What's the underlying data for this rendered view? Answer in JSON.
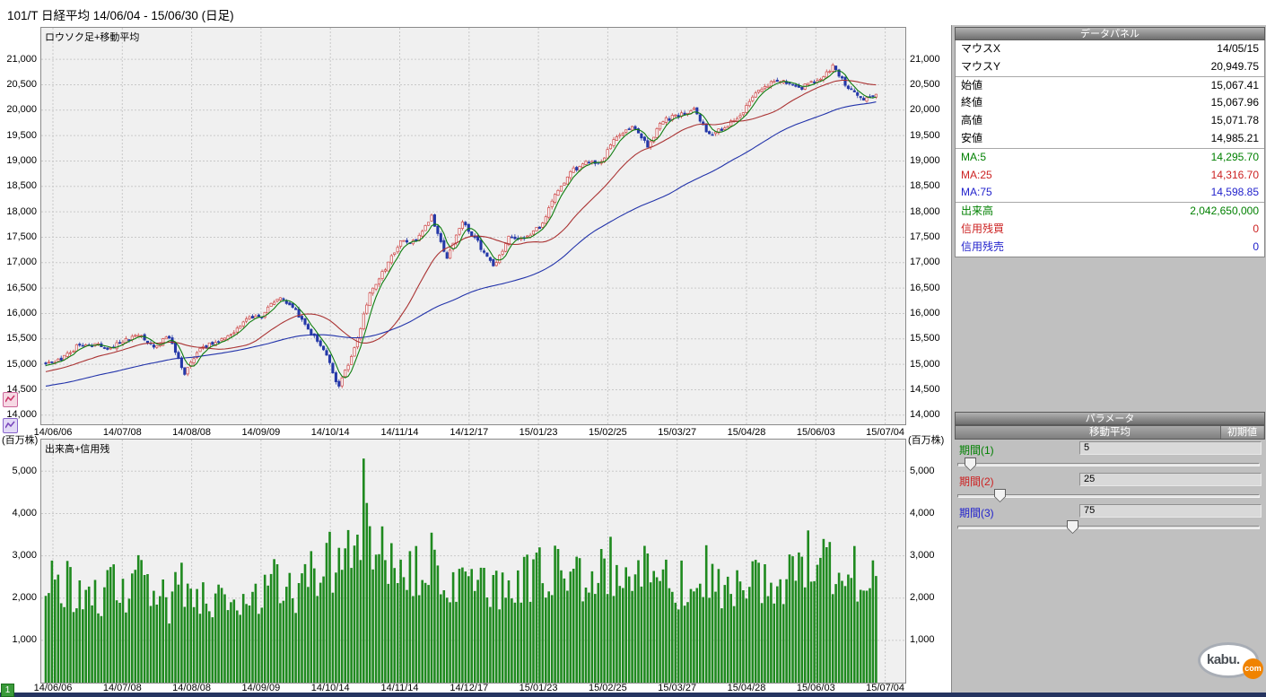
{
  "title_bar": {
    "text": "101/T 日経平均  14/06/04 - 15/06/30 (日足)"
  },
  "price_chart": {
    "inner_label": "ロウソク足+移動平均"
  },
  "volume_chart": {
    "inner_label": "出来高+信用残",
    "unit_label": "(百万株)"
  },
  "page_indicator": "1",
  "logo": {
    "text_main": "kabu.",
    "text_badge": "com"
  },
  "data_panel": {
    "header": "データパネル",
    "rows": [
      {
        "label": "マウスX",
        "value": "14/05/15",
        "color": "#000000",
        "sep": false
      },
      {
        "label": "マウスY",
        "value": "20,949.75",
        "color": "#000000",
        "sep": true
      },
      {
        "label": "始値",
        "value": "15,067.41",
        "color": "#000000",
        "sep": false
      },
      {
        "label": "終値",
        "value": "15,067.96",
        "color": "#000000",
        "sep": false
      },
      {
        "label": "高値",
        "value": "15,071.78",
        "color": "#000000",
        "sep": false
      },
      {
        "label": "安値",
        "value": "14,985.21",
        "color": "#000000",
        "sep": true
      },
      {
        "label": "MA:5",
        "value": "14,295.70",
        "color": "#008000",
        "sep": false
      },
      {
        "label": "MA:25",
        "value": "14,316.70",
        "color": "#cc2222",
        "sep": false
      },
      {
        "label": "MA:75",
        "value": "14,598.85",
        "color": "#2222cc",
        "sep": true
      },
      {
        "label": "出来高",
        "value": "2,042,650,000",
        "color": "#008000",
        "sep": false
      },
      {
        "label": "信用残買",
        "value": "0",
        "color": "#cc2222",
        "sep": false
      },
      {
        "label": "信用残売",
        "value": "0",
        "color": "#2222cc",
        "sep": false
      }
    ]
  },
  "parameter_panel": {
    "header": "パラメータ",
    "group_title": "移動平均",
    "reset_button": "初期値",
    "params": [
      {
        "label": "期間(1)",
        "value": 5,
        "slider_max": 200,
        "color": "#008000"
      },
      {
        "label": "期間(2)",
        "value": 25,
        "slider_max": 200,
        "color": "#cc2222"
      },
      {
        "label": "期間(3)",
        "value": 75,
        "slider_max": 200,
        "color": "#2222cc"
      }
    ]
  },
  "colors": {
    "plot_background": "#f0f0f0",
    "grid_line": "#c9c9c9",
    "up_candle": "#cc4444",
    "down_candle": "#2438a8",
    "ma5_line": "#0f7d0f",
    "ma25_line": "#aa3333",
    "ma75_line": "#2233aa",
    "volume_bar": "#1f8a1f",
    "panel_background": "#c0c0c0",
    "bottom_bar": "#253460"
  },
  "chart_data": {
    "type": "candlestick",
    "instrument": "101/T 日経平均",
    "period": "14/06/04 - 15/06/30",
    "interval": "日足",
    "trading_days": 270,
    "anchor_interval_days": 5,
    "x_tick_labels": [
      "14/06/06",
      "14/07/08",
      "14/08/08",
      "14/09/09",
      "14/10/14",
      "14/11/14",
      "14/12/17",
      "15/01/23",
      "15/02/25",
      "15/03/27",
      "15/04/28",
      "15/06/03",
      "15/07/04"
    ],
    "price_axis": {
      "tick_min": 14000,
      "tick_max": 21000,
      "tick_step": 500,
      "render_min": 13820,
      "render_max": 21620
    },
    "volume_axis": {
      "tick_min": 1000,
      "tick_max": 5000,
      "tick_step": 1000,
      "unit": "百万株",
      "render_max": 5750
    },
    "ma_series": [
      {
        "name": "MA:5",
        "period": 5,
        "color": "#0f7d0f"
      },
      {
        "name": "MA:25",
        "period": 25,
        "color": "#aa3333"
      },
      {
        "name": "MA:75",
        "period": 75,
        "color": "#2233aa"
      }
    ],
    "weekly_close_anchors": [
      15000,
      15100,
      15350,
      15400,
      15300,
      15450,
      15600,
      15350,
      15550,
      14800,
      15300,
      15450,
      15550,
      15900,
      15950,
      16300,
      16150,
      15700,
      15300,
      14550,
      15300,
      16400,
      16900,
      17400,
      17400,
      17900,
      17100,
      17800,
      17400,
      16900,
      17500,
      17500,
      17700,
      18300,
      18800,
      18950,
      19000,
      19500,
      19700,
      19300,
      19800,
      19900,
      20000,
      19500,
      19650,
      19900,
      20300,
      20550,
      20550,
      20450,
      20600,
      20850,
      20450,
      20200,
      20350
    ],
    "weekly_volume_anchors": [
      2200,
      2400,
      2100,
      2000,
      2300,
      2100,
      2500,
      2000,
      1900,
      2300,
      2100,
      1800,
      1900,
      2200,
      2000,
      2400,
      2200,
      2500,
      2700,
      3000,
      2800,
      3400,
      2800,
      2600,
      2700,
      2900,
      2600,
      2300,
      2200,
      2400,
      2300,
      2400,
      2500,
      2600,
      2500,
      2400,
      2600,
      2800,
      2700,
      2900,
      2400,
      2300,
      2500,
      2400,
      2200,
      2100,
      2300,
      2400,
      2500,
      2700,
      2600,
      2800,
      2600,
      2500,
      2400
    ],
    "pre_history_close_anchors": [
      14200,
      14350,
      14300,
      14250,
      14400,
      14350,
      14500,
      14450,
      14600,
      14550,
      14700,
      14750,
      14800,
      14900,
      14950,
      15000
    ],
    "volume_spikes": [
      {
        "day": 101,
        "value": 3500
      },
      {
        "day": 103,
        "value": 5300
      },
      {
        "day": 104,
        "value": 4250
      },
      {
        "day": 105,
        "value": 3700
      },
      {
        "day": 112,
        "value": 3300
      },
      {
        "day": 160,
        "value": 3200
      },
      {
        "day": 183,
        "value": 3450
      },
      {
        "day": 214,
        "value": 3250
      },
      {
        "day": 247,
        "value": 3600
      },
      {
        "day": 252,
        "value": 3400
      }
    ]
  }
}
